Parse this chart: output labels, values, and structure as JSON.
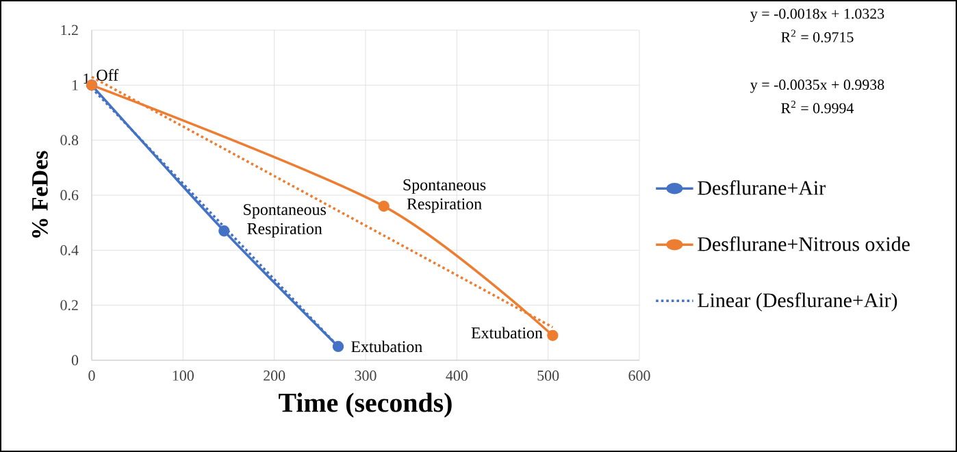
{
  "chart_data": {
    "type": "line",
    "xlabel": "Time (seconds)",
    "ylabel": "% FeDes",
    "xlim": [
      0,
      600
    ],
    "xticks": [
      0,
      100,
      200,
      300,
      400,
      500,
      600
    ],
    "ylim": [
      0,
      1.2
    ],
    "yticks": [
      0,
      0.2,
      0.4,
      0.6,
      0.8,
      1,
      1.2
    ],
    "grid": true,
    "legend": "right",
    "marker": "circle",
    "series": [
      {
        "name": "Desflurane+Air",
        "color": "#4472c4",
        "x": [
          0,
          145,
          270
        ],
        "values": [
          1,
          0.47,
          0.05
        ]
      },
      {
        "name": "Desflurane+Nitrous oxide",
        "color": "#ed7d31",
        "x": [
          0,
          320,
          505
        ],
        "values": [
          1,
          0.56,
          0.09
        ],
        "value_labels": [
          "1",
          null,
          null
        ]
      },
      {
        "name": "Linear (Desflurane+Air)",
        "color": "#4472c4",
        "x": [
          0,
          270
        ],
        "values": [
          0.99,
          0.05
        ],
        "marker": "none",
        "line_style": "dotted"
      },
      {
        "color": "#ed7d31",
        "x": [
          0,
          505
        ],
        "values": [
          1.03,
          0.12
        ],
        "marker": "none",
        "line_style": "dotted"
      }
    ],
    "annotations": [
      "y = -0.0018x + 1.0323",
      "R$^{2}$ = 0.9715",
      "y = -0.0035x + 0.9938",
      "R$^{2}$ = 0.9994",
      {
        "text": "Off",
        "x": 0,
        "y": 1
      },
      {
        "text": "Spontaneous Respiration",
        "x": 145,
        "y": 0.47
      },
      {
        "text": "Spontaneous Respiration",
        "x": 320,
        "y": 0.56
      },
      {
        "text": "Extubation",
        "x": 270,
        "y": 0.05
      },
      {
        "text": "Extubation",
        "x": 505,
        "y": 0.09
      }
    ]
  }
}
